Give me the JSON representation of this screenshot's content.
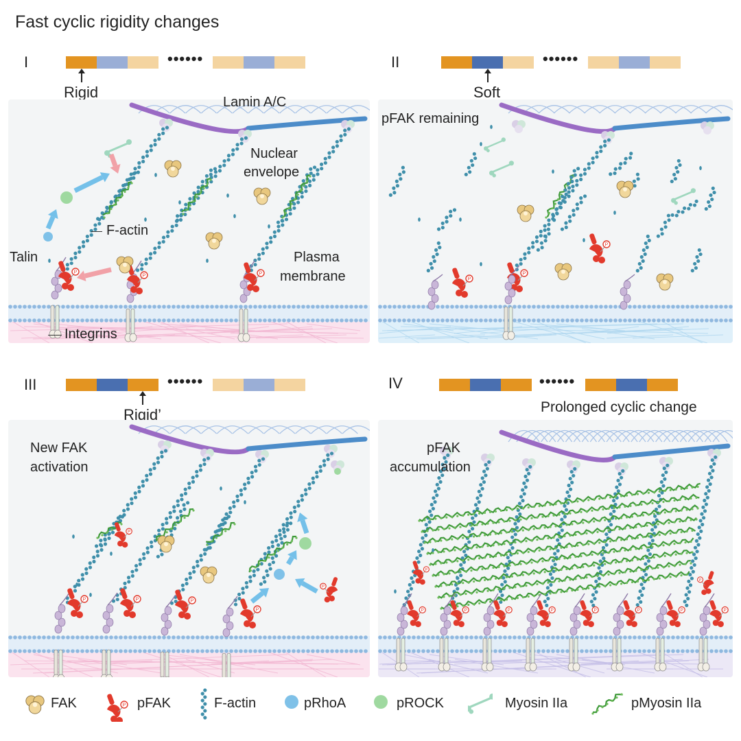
{
  "title": "Fast cyclic rigidity changes",
  "colors": {
    "rigid": "#e39421",
    "soft": "#4a6fb0",
    "rigid_faded": "#f4d4a0",
    "soft_faded": "#9aaed6",
    "nucleus_purple": "#9a6bc4",
    "nucleus_blue": "#4c8cc9",
    "lamin": "#a9c3e6",
    "factin": "#3f8faa",
    "pmyosin": "#3f9a3a",
    "pfak": "#e23a2c",
    "fak": "#e8c77e",
    "prhoa": "#7fc1e8",
    "prock": "#9fd9a0",
    "myosin": "#9fd7be",
    "membrane": "#8fb8df",
    "ecm_rigid": "#f2b7d2",
    "ecm_soft": "#aed6ef",
    "panel_bg": "#f3f5f6"
  },
  "panels": [
    {
      "id": "I",
      "numeral": "I",
      "stiffness_label": "Rigid",
      "labels": {
        "lamin": "Lamin A/C",
        "nuclear_1": "Nuclear",
        "nuclear_2": "envelope",
        "factin": "F-actin",
        "talin": "Talin",
        "plasma_1": "Plasma",
        "plasma_2": "membrane",
        "integrins": "Integrins"
      }
    },
    {
      "id": "II",
      "numeral": "II",
      "stiffness_label": "Soft",
      "note": "pFAK remaining"
    },
    {
      "id": "III",
      "numeral": "III",
      "stiffness_label": "Rigid’",
      "note_1": "New FAK",
      "note_2": "activation"
    },
    {
      "id": "IV",
      "numeral": "IV",
      "note": "Prolonged cyclic change",
      "note2_1": "pFAK",
      "note2_2": "accumulation"
    }
  ],
  "legend": [
    {
      "icon": "fak-icon",
      "label": "FAK"
    },
    {
      "icon": "pfak-icon",
      "label": "pFAK"
    },
    {
      "icon": "f-actin-icon",
      "label": "F-actin"
    },
    {
      "icon": "prhoa-icon",
      "label": "pRhoA"
    },
    {
      "icon": "prock-icon",
      "label": "pROCK"
    },
    {
      "icon": "myosin-iia-icon",
      "label": "Myosin IIa"
    },
    {
      "icon": "pmyosin-iia-icon",
      "label": "pMyosin IIa"
    }
  ],
  "phospho_mark": "P"
}
